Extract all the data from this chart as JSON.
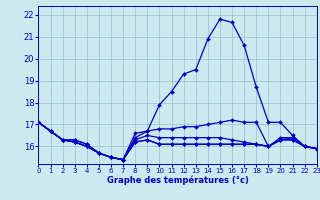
{
  "title": "Graphe des températures (°c)",
  "background_color": "#cce9f0",
  "grid_color": "#99bfd0",
  "line_color": "#0000cc",
  "x_hours": [
    0,
    1,
    2,
    3,
    4,
    5,
    6,
    7,
    8,
    9,
    10,
    11,
    12,
    13,
    14,
    15,
    16,
    17,
    18,
    19,
    20,
    21,
    22,
    23
  ],
  "lines": [
    [
      17.1,
      16.7,
      16.3,
      16.3,
      16.1,
      15.7,
      15.5,
      15.4,
      16.6,
      16.7,
      17.9,
      18.5,
      19.3,
      19.5,
      20.9,
      21.8,
      21.65,
      20.6,
      18.7,
      17.1,
      17.1,
      16.5,
      16.0,
      15.9
    ],
    [
      17.1,
      16.7,
      16.3,
      16.3,
      16.1,
      15.7,
      15.5,
      15.4,
      16.4,
      16.7,
      16.8,
      16.8,
      16.9,
      16.9,
      17.0,
      17.1,
      17.2,
      17.1,
      17.1,
      16.0,
      16.3,
      16.4,
      16.0,
      15.9
    ],
    [
      17.1,
      16.7,
      16.3,
      16.2,
      16.0,
      15.7,
      15.5,
      15.4,
      16.3,
      16.5,
      16.4,
      16.4,
      16.4,
      16.4,
      16.4,
      16.4,
      16.3,
      16.2,
      16.1,
      16.0,
      16.4,
      16.4,
      16.0,
      15.9
    ],
    [
      17.1,
      16.7,
      16.3,
      16.2,
      16.0,
      15.7,
      15.5,
      15.4,
      16.2,
      16.3,
      16.1,
      16.1,
      16.1,
      16.1,
      16.1,
      16.1,
      16.1,
      16.1,
      16.1,
      16.0,
      16.3,
      16.3,
      16.0,
      15.9
    ],
    [
      17.1,
      16.7,
      16.3,
      16.2,
      16.0,
      15.7,
      15.5,
      15.4,
      16.2,
      16.3,
      16.1,
      16.1,
      16.1,
      16.1,
      16.1,
      16.1,
      16.1,
      16.1,
      16.1,
      16.0,
      16.3,
      16.3,
      16.0,
      15.9
    ]
  ],
  "xlim": [
    0,
    23
  ],
  "ylim": [
    15.2,
    22.4
  ],
  "yticks": [
    16,
    17,
    18,
    19,
    20,
    21,
    22
  ],
  "xticks": [
    0,
    1,
    2,
    3,
    4,
    5,
    6,
    7,
    8,
    9,
    10,
    11,
    12,
    13,
    14,
    15,
    16,
    17,
    18,
    19,
    20,
    21,
    22,
    23
  ]
}
